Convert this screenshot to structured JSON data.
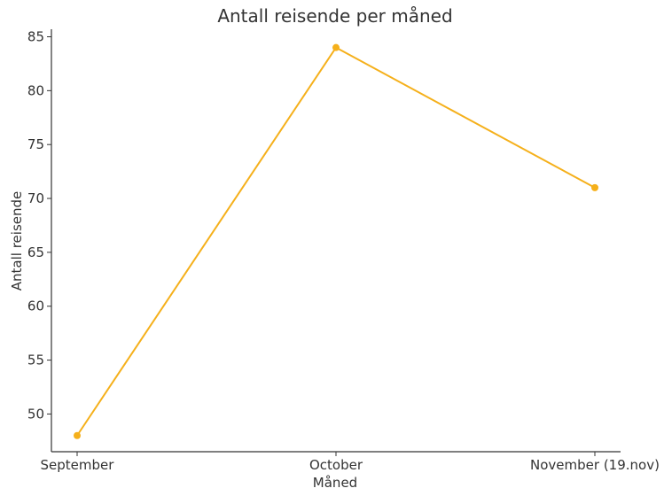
{
  "chart_data": {
    "type": "line",
    "title": "Antall reisende per måned",
    "xlabel": "Måned",
    "ylabel": "Antall reisende",
    "categories": [
      "September",
      "October",
      "November (19.nov)"
    ],
    "series": [
      {
        "values": [
          48,
          84,
          71
        ],
        "color": "#f5b01b",
        "marker": "circle"
      }
    ],
    "ylim": [
      46.5,
      85.7
    ],
    "yticks": [
      50,
      55,
      60,
      65,
      70,
      75,
      80,
      85
    ],
    "grid": false,
    "legend": "none",
    "spines": [
      "left",
      "bottom"
    ]
  }
}
